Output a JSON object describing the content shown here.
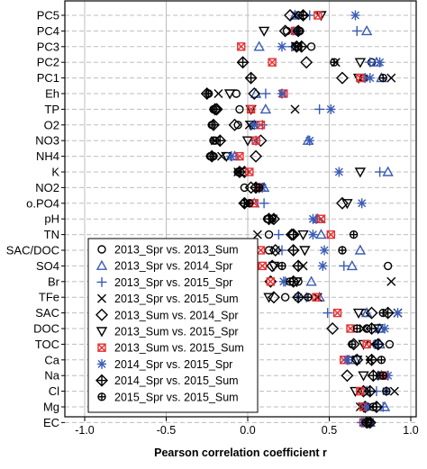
{
  "chart_data": {
    "type": "scatter",
    "xlabel": "Pearson correlation coefficient r",
    "ylabel": "",
    "xlim": [
      -1.0,
      1.0
    ],
    "x_ticks": [
      "-1.0",
      "-0.5",
      "0.0",
      "0.5",
      "1.0"
    ],
    "x_tick_values": [
      -1.0,
      -0.5,
      0.0,
      0.5,
      1.0
    ],
    "grid": true,
    "legend_position": "lower-left",
    "categories": [
      "PC5",
      "PC4",
      "PC3",
      "PC2",
      "PC1",
      "Eh",
      "TP",
      "O2",
      "NO3",
      "NH4",
      "K",
      "NO2",
      "o.PO4",
      "pH",
      "TN",
      "SAC/DOC",
      "SO4",
      "Br",
      "TFe",
      "SAC",
      "DOC",
      "TOC",
      "Ca",
      "Na",
      "Cl",
      "Mg",
      "EC"
    ],
    "series": [
      {
        "name": "2013_Spr vs. 2013_Sum",
        "marker": "circle",
        "color": "#000000",
        "values": [
          0.31,
          0.24,
          0.39,
          0.76,
          0.71,
          -0.07,
          -0.05,
          -0.06,
          -0.2,
          -0.23,
          -0.02,
          -0.02,
          -0.02,
          0.12,
          0.13,
          0.13,
          0.86,
          0.31,
          0.23,
          0.72,
          0.73,
          0.87,
          0.62,
          0.81,
          0.72,
          0.73,
          0.75
        ]
      },
      {
        "name": "2013_Spr vs. 2014_Spr",
        "marker": "triangle",
        "color": "#3a5bb5",
        "values": [
          0.29,
          0.73,
          0.07,
          0.79,
          0.82,
          0.05,
          0.11,
          0.04,
          0.37,
          -0.08,
          0.86,
          0.1,
          0.04,
          0.43,
          0.45,
          0.69,
          0.64,
          0.39,
          0.44,
          0.73,
          0.81,
          0.81,
          0.66,
          0.82,
          0.73,
          0.84,
          0.75
        ]
      },
      {
        "name": "2013_Spr vs. 2015_Spr",
        "marker": "plus",
        "color": "#3a5bb5",
        "values": [
          0.38,
          0.67,
          0.27,
          0.75,
          0.72,
          0.11,
          0.44,
          0.09,
          0.05,
          -0.1,
          0.81,
          0.07,
          0.1,
          0.42,
          0.19,
          0.21,
          0.59,
          0.23,
          0.36,
          0.49,
          0.8,
          0.78,
          0.62,
          0.8,
          0.79,
          0.83,
          0.7
        ]
      },
      {
        "name": "2013_Spr vs. 2015_Sum",
        "marker": "x",
        "color": "#000000",
        "values": [
          0.29,
          0.26,
          0.3,
          0.54,
          0.88,
          -0.18,
          0.29,
          0.01,
          -0.2,
          -0.16,
          -0.06,
          0.06,
          -0.01,
          0.45,
          0.06,
          0.17,
          0.34,
          0.88,
          0.43,
          0.92,
          0.71,
          0.76,
          0.75,
          0.82,
          0.9,
          0.69,
          0.72
        ]
      },
      {
        "name": "2013_Sum vs. 2014_Spr",
        "marker": "diamond",
        "color": "#000000",
        "values": [
          0.26,
          0.23,
          0.3,
          0.36,
          0.58,
          0.04,
          -0.19,
          -0.08,
          0.08,
          0.05,
          -0.02,
          0.02,
          0.58,
          0.16,
          0.27,
          0.17,
          0.15,
          0.14,
          0.16,
          0.76,
          0.52,
          0.65,
          0.67,
          0.61,
          0.71,
          0.72,
          0.75
        ]
      },
      {
        "name": "2013_Sum vs. 2015_Spr",
        "marker": "triangle-down",
        "color": "#000000",
        "values": [
          0.45,
          0.1,
          0.3,
          0.69,
          0.68,
          -0.11,
          0.02,
          0.02,
          0.0,
          -0.13,
          0.69,
          0.07,
          0.61,
          0.15,
          0.34,
          0.35,
          0.16,
          0.3,
          0.13,
          0.68,
          0.8,
          0.71,
          0.67,
          0.71,
          0.66,
          0.71,
          0.74
        ]
      },
      {
        "name": "2013_Sum vs. 2015_Sum",
        "marker": "boxx",
        "color": "#e63030",
        "values": [
          0.43,
          0.29,
          -0.04,
          0.15,
          0.69,
          0.22,
          0.02,
          0.08,
          0.05,
          -0.05,
          0.01,
          0.07,
          0.04,
          0.45,
          0.51,
          0.08,
          0.09,
          0.14,
          0.42,
          0.55,
          0.63,
          0.73,
          0.59,
          0.84,
          0.69,
          0.71,
          0.71
        ]
      },
      {
        "name": "2014_Spr vs. 2015_Spr",
        "marker": "asterisk",
        "color": "#3a5bb5",
        "values": [
          0.66,
          0.3,
          0.21,
          0.81,
          0.75,
          0.21,
          0.51,
          0.04,
          0.38,
          -0.1,
          0.56,
          0.09,
          0.7,
          0.4,
          0.4,
          0.47,
          0.46,
          0.22,
          0.31,
          0.92,
          0.84,
          0.79,
          0.61,
          0.86,
          0.85,
          0.73,
          0.71
        ]
      },
      {
        "name": "2014_Spr vs. 2015_Sum",
        "marker": "diamond-plus",
        "color": "#000000",
        "values": [
          0.34,
          0.31,
          0.33,
          -0.03,
          0.02,
          -0.25,
          -0.2,
          -0.21,
          -0.17,
          -0.22,
          -0.05,
          0.05,
          -0.02,
          0.13,
          0.28,
          0.28,
          0.31,
          0.28,
          0.31,
          0.86,
          0.76,
          0.8,
          0.76,
          0.77,
          0.75,
          0.79,
          0.73
        ]
      },
      {
        "name": "2015_Spr vs. 2015_Sum",
        "marker": "circle-plus",
        "color": "#000000",
        "values": [
          0.34,
          0.32,
          0.31,
          0.53,
          0.83,
          -0.24,
          -0.21,
          -0.22,
          -0.21,
          -0.21,
          -0.06,
          0.07,
          0.01,
          0.15,
          0.65,
          0.58,
          0.21,
          0.26,
          0.37,
          0.83,
          0.67,
          0.64,
          0.82,
          0.83,
          0.85,
          0.77,
          0.74
        ]
      }
    ]
  }
}
